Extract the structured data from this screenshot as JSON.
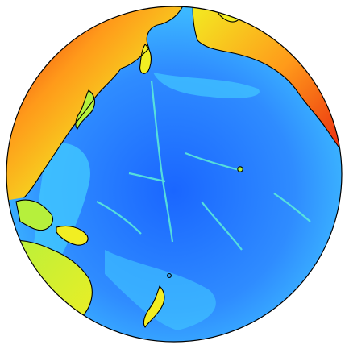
{
  "map": {
    "projection": "orthographic",
    "colormap": "jet",
    "outline_color": "#000000",
    "background_color": "#ffffff",
    "colors": {
      "deep_ocean": "#1a66ff",
      "ocean": "#2f8cff",
      "shallow": "#41c8ff",
      "coastal": "#5ef0d8",
      "low_land": "#b6f03c",
      "mid_land": "#f2ee22",
      "high": "#ff9a1a",
      "highest": "#e81e0e"
    }
  }
}
